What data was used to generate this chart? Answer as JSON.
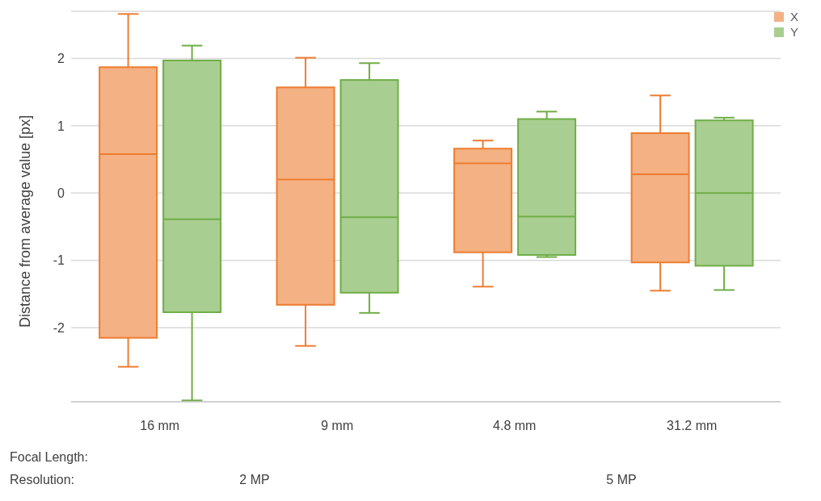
{
  "chart_data": {
    "type": "box",
    "ylabel": "Distance from average value [px]",
    "categories": [
      "16 mm",
      "9 mm",
      "4.8 mm",
      "31.2 mm"
    ],
    "annotations": [
      "Focal Length:",
      "Resolution:",
      "2 MP",
      "5 MP"
    ],
    "ylim": [
      -3.1,
      2.7
    ],
    "yticks": [
      -2,
      -1,
      0,
      1,
      2
    ],
    "grid": "y",
    "legend": "top right",
    "series": [
      {
        "name": "X",
        "color": "#ed7d31",
        "boxes": [
          {
            "low": -2.58,
            "q1": -2.15,
            "median": 0.58,
            "q3": 1.87,
            "high": 2.66
          },
          {
            "low": -2.27,
            "q1": -1.66,
            "median": 0.2,
            "q3": 1.57,
            "high": 2.01
          },
          {
            "low": -1.39,
            "q1": -0.88,
            "median": 0.44,
            "q3": 0.66,
            "high": 0.78
          },
          {
            "low": -1.45,
            "q1": -1.03,
            "median": 0.28,
            "q3": 0.89,
            "high": 1.45
          }
        ]
      },
      {
        "name": "Y",
        "color": "#70ad47",
        "boxes": [
          {
            "low": -3.08,
            "q1": -1.77,
            "median": -0.39,
            "q3": 1.97,
            "high": 2.19
          },
          {
            "low": -1.78,
            "q1": -1.48,
            "median": -0.36,
            "q3": 1.68,
            "high": 1.93
          },
          {
            "low": -0.95,
            "q1": -0.92,
            "median": -0.35,
            "q3": 1.1,
            "high": 1.21
          },
          {
            "low": -1.44,
            "q1": -1.08,
            "median": 0,
            "q3": 1.08,
            "high": 1.12
          }
        ]
      }
    ]
  }
}
